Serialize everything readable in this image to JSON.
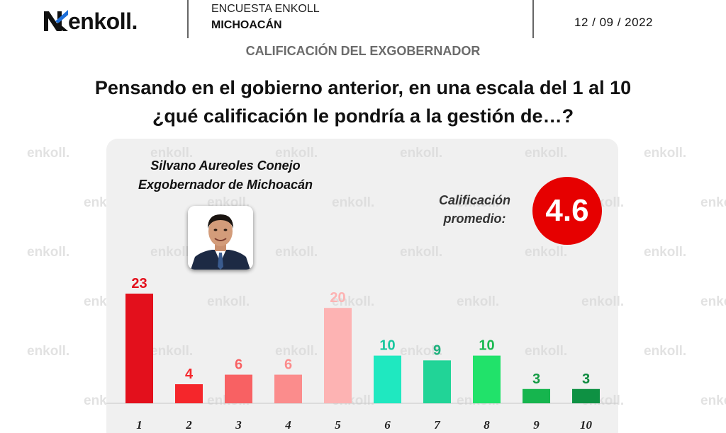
{
  "header": {
    "brand": "enkoll.",
    "survey": "ENCUESTA ENKOLL",
    "region": "MICHOACÁN",
    "date": "12 / 09 / 2022",
    "subtitle": "CALIFICACIÓN DEL EXGOBERNADOR"
  },
  "question": {
    "line1": "Pensando en el gobierno anterior, en una escala del 1 al 10",
    "line2": "¿qué calificación le pondría a la gestión de…?"
  },
  "person": {
    "name": "Silvano Aureoles Conejo",
    "role": "Exgobernador de Michoacán"
  },
  "average": {
    "label_line1": "Calificación",
    "label_line2": "promedio:",
    "value": "4.6",
    "color": "#e60000"
  },
  "watermark": "enkoll.",
  "chart_data": {
    "type": "bar",
    "categories": [
      "1",
      "2",
      "3",
      "4",
      "5",
      "6",
      "7",
      "8",
      "9",
      "10"
    ],
    "values": [
      23,
      4,
      6,
      6,
      20,
      10,
      9,
      10,
      3,
      3
    ],
    "bar_colors": [
      "#e3101c",
      "#f5262b",
      "#f86163",
      "#fb8c8c",
      "#fdb3b3",
      "#1fe8c0",
      "#21d497",
      "#21e26a",
      "#16b54e",
      "#0e9143"
    ],
    "label_colors": [
      "#e3101c",
      "#f5262b",
      "#f86163",
      "#fb8c8c",
      "#fdb3b3",
      "#18c79f",
      "#1bb07c",
      "#1ab94f",
      "#149b44",
      "#0e8a3f"
    ],
    "title": "",
    "xlabel": "",
    "ylabel": "",
    "ylim": [
      0,
      23
    ]
  }
}
